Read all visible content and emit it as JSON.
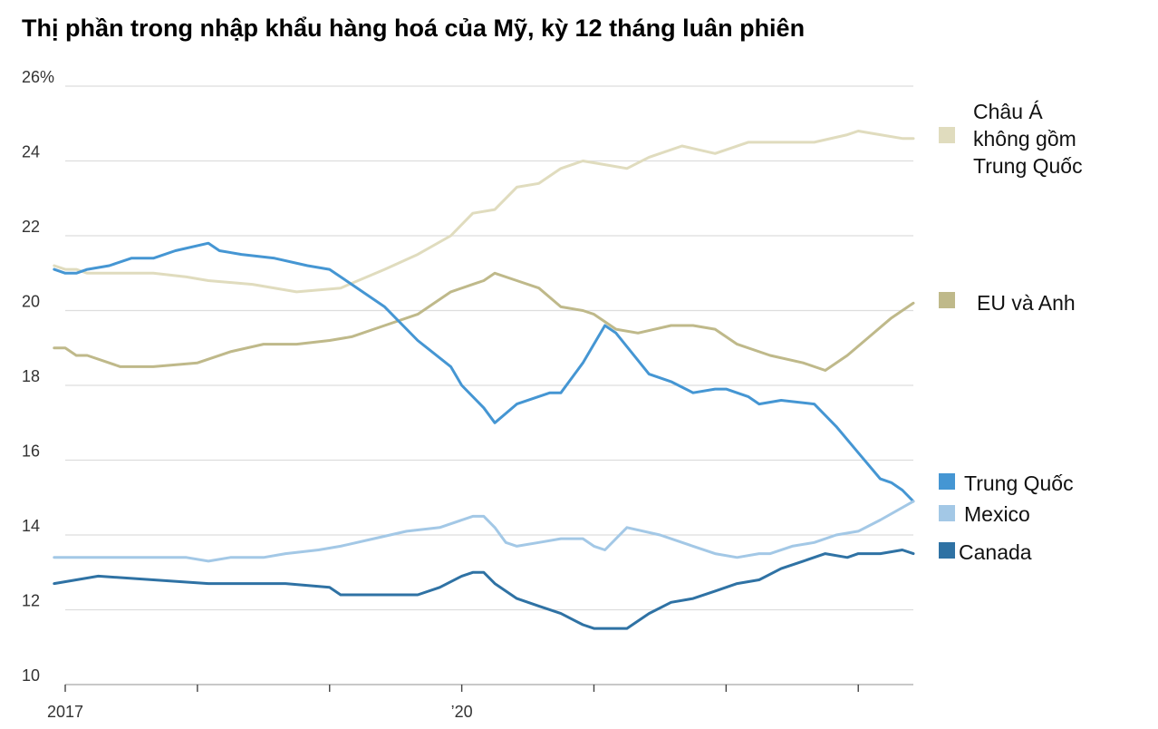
{
  "chart_data": {
    "type": "line",
    "title": "Thị phần trong nhập khẩu hàng hoá của Mỹ, kỳ 12 tháng luân phiên",
    "xlabel": "",
    "ylabel": "",
    "ylim": [
      10,
      26
    ],
    "yticks": [
      {
        "value": 26,
        "label": "26%"
      },
      {
        "value": 24,
        "label": "24"
      },
      {
        "value": 22,
        "label": "22"
      },
      {
        "value": 20,
        "label": "20"
      },
      {
        "value": 18,
        "label": "18"
      },
      {
        "value": 16,
        "label": "16"
      },
      {
        "value": 14,
        "label": "14"
      },
      {
        "value": 12,
        "label": "12"
      },
      {
        "value": 10,
        "label": "10"
      }
    ],
    "xlim": [
      "2017-01",
      "2023-06"
    ],
    "xticks": [
      {
        "value": "2017-01",
        "label": "2017"
      },
      {
        "value": "2018-01",
        "label": ""
      },
      {
        "value": "2019-01",
        "label": ""
      },
      {
        "value": "2020-01",
        "label": "’20"
      },
      {
        "value": "2021-01",
        "label": ""
      },
      {
        "value": "2022-01",
        "label": ""
      },
      {
        "value": "2023-01",
        "label": ""
      }
    ],
    "grid": true,
    "legend": "right",
    "series": [
      {
        "name": "Châu Á không gồm Trung Quốc",
        "legend_lines": [
          "Châu Á",
          "không gồm",
          "Trung Quốc"
        ],
        "color": "#e0dcbe",
        "x": [
          "2016-12",
          "2017-01",
          "2017-02",
          "2017-03",
          "2017-06",
          "2017-09",
          "2017-12",
          "2018-02",
          "2018-06",
          "2018-10",
          "2019-02",
          "2019-06",
          "2019-09",
          "2019-12",
          "2020-02",
          "2020-04",
          "2020-06",
          "2020-08",
          "2020-10",
          "2020-12",
          "2021-02",
          "2021-04",
          "2021-06",
          "2021-09",
          "2021-12",
          "2022-03",
          "2022-06",
          "2022-09",
          "2022-12",
          "2023-01",
          "2023-03",
          "2023-05",
          "2023-06"
        ],
        "values": [
          21.2,
          21.1,
          21.1,
          21.0,
          21.0,
          21.0,
          20.9,
          20.8,
          20.7,
          20.5,
          20.6,
          21.1,
          21.5,
          22.0,
          22.6,
          22.7,
          23.3,
          23.4,
          23.8,
          24.0,
          23.9,
          23.8,
          24.1,
          24.4,
          24.2,
          24.5,
          24.5,
          24.5,
          24.7,
          24.8,
          24.7,
          24.6,
          24.6
        ]
      },
      {
        "name": "EU và Anh",
        "legend_lines": [
          "EU và Anh"
        ],
        "color": "#bfb98a",
        "x": [
          "2016-12",
          "2017-01",
          "2017-02",
          "2017-03",
          "2017-06",
          "2017-09",
          "2018-01",
          "2018-04",
          "2018-07",
          "2018-10",
          "2019-01",
          "2019-03",
          "2019-06",
          "2019-09",
          "2019-12",
          "2020-02",
          "2020-03",
          "2020-04",
          "2020-06",
          "2020-08",
          "2020-10",
          "2020-12",
          "2021-01",
          "2021-03",
          "2021-05",
          "2021-08",
          "2021-10",
          "2021-12",
          "2022-02",
          "2022-05",
          "2022-08",
          "2022-10",
          "2022-12",
          "2023-02",
          "2023-04",
          "2023-06"
        ],
        "values": [
          19.0,
          19.0,
          18.8,
          18.8,
          18.5,
          18.5,
          18.6,
          18.9,
          19.1,
          19.1,
          19.2,
          19.3,
          19.6,
          19.9,
          20.5,
          20.7,
          20.8,
          21.0,
          20.8,
          20.6,
          20.1,
          20.0,
          19.9,
          19.5,
          19.4,
          19.6,
          19.6,
          19.5,
          19.1,
          18.8,
          18.6,
          18.4,
          18.8,
          19.3,
          19.8,
          20.2
        ]
      },
      {
        "name": "Trung Quốc",
        "legend_lines": [
          "Trung Quốc"
        ],
        "color": "#4596d3",
        "x": [
          "2016-12",
          "2017-01",
          "2017-02",
          "2017-03",
          "2017-05",
          "2017-07",
          "2017-09",
          "2017-11",
          "2018-02",
          "2018-03",
          "2018-05",
          "2018-08",
          "2018-11",
          "2019-01",
          "2019-03",
          "2019-06",
          "2019-09",
          "2019-12",
          "2020-01",
          "2020-03",
          "2020-04",
          "2020-06",
          "2020-09",
          "2020-10",
          "2020-12",
          "2021-02",
          "2021-03",
          "2021-06",
          "2021-08",
          "2021-10",
          "2021-12",
          "2022-01",
          "2022-03",
          "2022-04",
          "2022-06",
          "2022-09",
          "2022-11",
          "2023-01",
          "2023-03",
          "2023-04",
          "2023-05",
          "2023-06"
        ],
        "values": [
          21.1,
          21.0,
          21.0,
          21.1,
          21.2,
          21.4,
          21.4,
          21.6,
          21.8,
          21.6,
          21.5,
          21.4,
          21.2,
          21.1,
          20.7,
          20.1,
          19.2,
          18.5,
          18.0,
          17.4,
          17.0,
          17.5,
          17.8,
          17.8,
          18.6,
          19.6,
          19.4,
          18.3,
          18.1,
          17.8,
          17.9,
          17.9,
          17.7,
          17.5,
          17.6,
          17.5,
          16.9,
          16.2,
          15.5,
          15.4,
          15.2,
          14.9
        ]
      },
      {
        "name": "Mexico",
        "legend_lines": [
          "Mexico"
        ],
        "color": "#a3c8e6",
        "x": [
          "2016-12",
          "2017-06",
          "2017-12",
          "2018-02",
          "2018-04",
          "2018-07",
          "2018-09",
          "2018-12",
          "2019-02",
          "2019-05",
          "2019-08",
          "2019-11",
          "2020-02",
          "2020-03",
          "2020-04",
          "2020-05",
          "2020-06",
          "2020-08",
          "2020-10",
          "2020-12",
          "2021-01",
          "2021-02",
          "2021-04",
          "2021-07",
          "2021-10",
          "2021-12",
          "2022-02",
          "2022-04",
          "2022-05",
          "2022-07",
          "2022-09",
          "2022-11",
          "2023-01",
          "2023-03",
          "2023-06"
        ],
        "values": [
          13.4,
          13.4,
          13.4,
          13.3,
          13.4,
          13.4,
          13.5,
          13.6,
          13.7,
          13.9,
          14.1,
          14.2,
          14.5,
          14.5,
          14.2,
          13.8,
          13.7,
          13.8,
          13.9,
          13.9,
          13.7,
          13.6,
          14.2,
          14.0,
          13.7,
          13.5,
          13.4,
          13.5,
          13.5,
          13.7,
          13.8,
          14.0,
          14.1,
          14.4,
          14.9
        ]
      },
      {
        "name": "Canada",
        "legend_lines": [
          "Canada"
        ],
        "color": "#2f72a4",
        "x": [
          "2016-12",
          "2017-02",
          "2017-04",
          "2017-09",
          "2018-02",
          "2018-09",
          "2019-01",
          "2019-02",
          "2019-06",
          "2019-09",
          "2019-11",
          "2020-01",
          "2020-02",
          "2020-03",
          "2020-04",
          "2020-06",
          "2020-08",
          "2020-10",
          "2020-12",
          "2021-01",
          "2021-04",
          "2021-06",
          "2021-08",
          "2021-10",
          "2021-12",
          "2022-02",
          "2022-04",
          "2022-06",
          "2022-08",
          "2022-10",
          "2022-12",
          "2023-01",
          "2023-03",
          "2023-05",
          "2023-06"
        ],
        "values": [
          12.7,
          12.8,
          12.9,
          12.8,
          12.7,
          12.7,
          12.6,
          12.4,
          12.4,
          12.4,
          12.6,
          12.9,
          13.0,
          13.0,
          12.7,
          12.3,
          12.1,
          11.9,
          11.6,
          11.5,
          11.5,
          11.9,
          12.2,
          12.3,
          12.5,
          12.7,
          12.8,
          13.1,
          13.3,
          13.5,
          13.4,
          13.5,
          13.5,
          13.6,
          13.5
        ]
      }
    ]
  }
}
